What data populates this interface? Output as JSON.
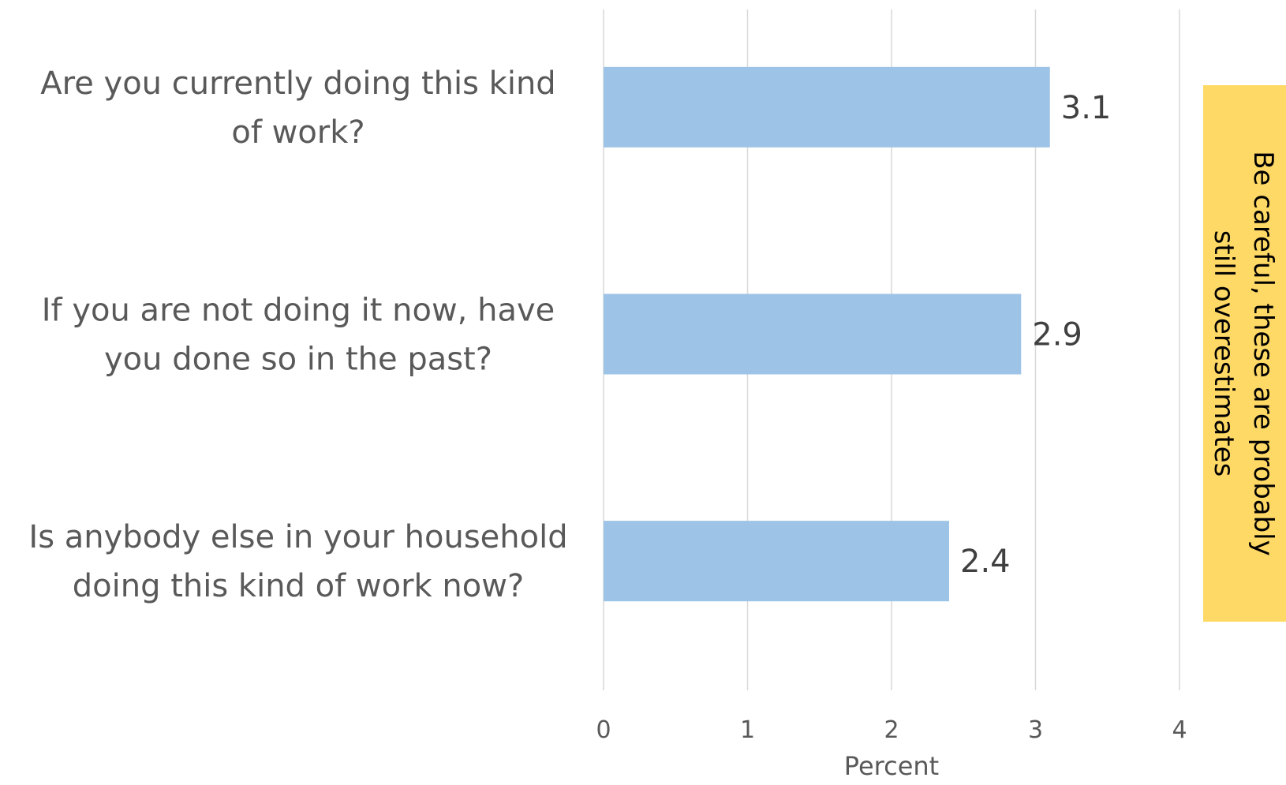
{
  "chart_data": {
    "type": "bar",
    "orientation": "horizontal",
    "categories": [
      [
        "Are you currently doing this kind",
        "of work?"
      ],
      [
        "If you are not doing it now, have",
        "you done so in the past?"
      ],
      [
        "Is anybody else in your household",
        "doing this kind of work now?"
      ]
    ],
    "values": [
      3.1,
      2.9,
      2.4
    ],
    "value_labels": [
      "3.1",
      "2.9",
      "2.4"
    ],
    "xlabel": "Percent",
    "xlim": [
      0,
      4
    ],
    "xticks": [
      "0",
      "1",
      "2",
      "3",
      "4"
    ],
    "grid": true,
    "bar_color": "#9dc3e6",
    "annotation": {
      "lines": [
        "Be careful, these are probably",
        "still overestimates"
      ],
      "background": "#ffd966"
    }
  }
}
